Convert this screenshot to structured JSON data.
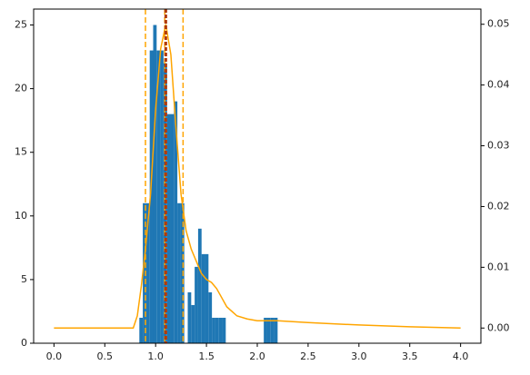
{
  "chart_data": {
    "type": "histogram",
    "bins": [
      0.84,
      0.874,
      0.908,
      0.942,
      0.976,
      1.01,
      1.044,
      1.078,
      1.112,
      1.146,
      1.18,
      1.214,
      1.248,
      1.282,
      1.316,
      1.35,
      1.384,
      1.418,
      1.452,
      1.486,
      1.52,
      1.554,
      1.588,
      1.622,
      1.656,
      1.69,
      1.724,
      1.758,
      1.792,
      1.826,
      1.86,
      1.894,
      1.928,
      1.962,
      1.996,
      2.03,
      2.064,
      2.098,
      2.132,
      2.166,
      2.2
    ],
    "values": [
      2,
      11,
      11,
      23,
      25,
      23,
      23,
      22,
      18,
      18,
      19,
      11,
      11,
      0,
      4,
      3,
      6,
      9,
      7,
      7,
      4,
      2,
      2,
      2,
      2,
      0,
      0,
      0,
      0,
      0,
      0,
      0,
      0,
      0,
      0,
      0,
      2,
      2,
      2,
      2
    ],
    "color": "#1f77b4",
    "density": {
      "type": "line",
      "axis": "y2",
      "color": "#ffa500",
      "x": [
        0,
        0.5,
        0.78,
        0.82,
        0.86,
        0.9,
        0.95,
        1.0,
        1.05,
        1.1,
        1.15,
        1.2,
        1.25,
        1.3,
        1.35,
        1.4,
        1.45,
        1.5,
        1.55,
        1.6,
        1.65,
        1.7,
        1.8,
        1.9,
        2.0,
        2.2,
        2.5,
        3.0,
        3.5,
        4.0
      ],
      "values": [
        0,
        0,
        0,
        0.002,
        0.007,
        0.013,
        0.022,
        0.036,
        0.046,
        0.05,
        0.045,
        0.033,
        0.022,
        0.016,
        0.013,
        0.011,
        0.009,
        0.008,
        0.0075,
        0.0065,
        0.005,
        0.0035,
        0.002,
        0.0015,
        0.0012,
        0.0012,
        0.0009,
        0.0005,
        0.0002,
        0
      ]
    },
    "vlines": [
      {
        "x": 0.9,
        "color": "#ffa500"
      },
      {
        "x": 1.09,
        "color": "#ffa500"
      },
      {
        "x": 1.1,
        "color": "#b03a0a"
      },
      {
        "x": 1.27,
        "color": "#ffa500"
      }
    ],
    "xlim": [
      -0.2,
      4.2
    ],
    "xticks": [
      {
        "value": 0,
        "label": "0.0"
      },
      {
        "value": 0.5,
        "label": "0.5"
      },
      {
        "value": 1,
        "label": "1.0"
      },
      {
        "value": 1.5,
        "label": "1.5"
      },
      {
        "value": 2,
        "label": "2.0"
      },
      {
        "value": 2.5,
        "label": "2.5"
      },
      {
        "value": 3,
        "label": "3.0"
      },
      {
        "value": 3.5,
        "label": "3.5"
      },
      {
        "value": 4,
        "label": "4.0"
      }
    ],
    "ylim": [
      0,
      26.25
    ],
    "yticks": [
      0,
      5,
      10,
      15,
      20,
      25
    ],
    "y2lim": [
      -0.0025,
      0.0525
    ],
    "y2ticks": [
      {
        "value": 0,
        "label": "0.00"
      },
      {
        "value": 0.01,
        "label": "0.01"
      },
      {
        "value": 0.02,
        "label": "0.02"
      },
      {
        "value": 0.03,
        "label": "0.03"
      },
      {
        "value": 0.04,
        "label": "0.04"
      },
      {
        "value": 0.05,
        "label": "0.05"
      }
    ]
  }
}
